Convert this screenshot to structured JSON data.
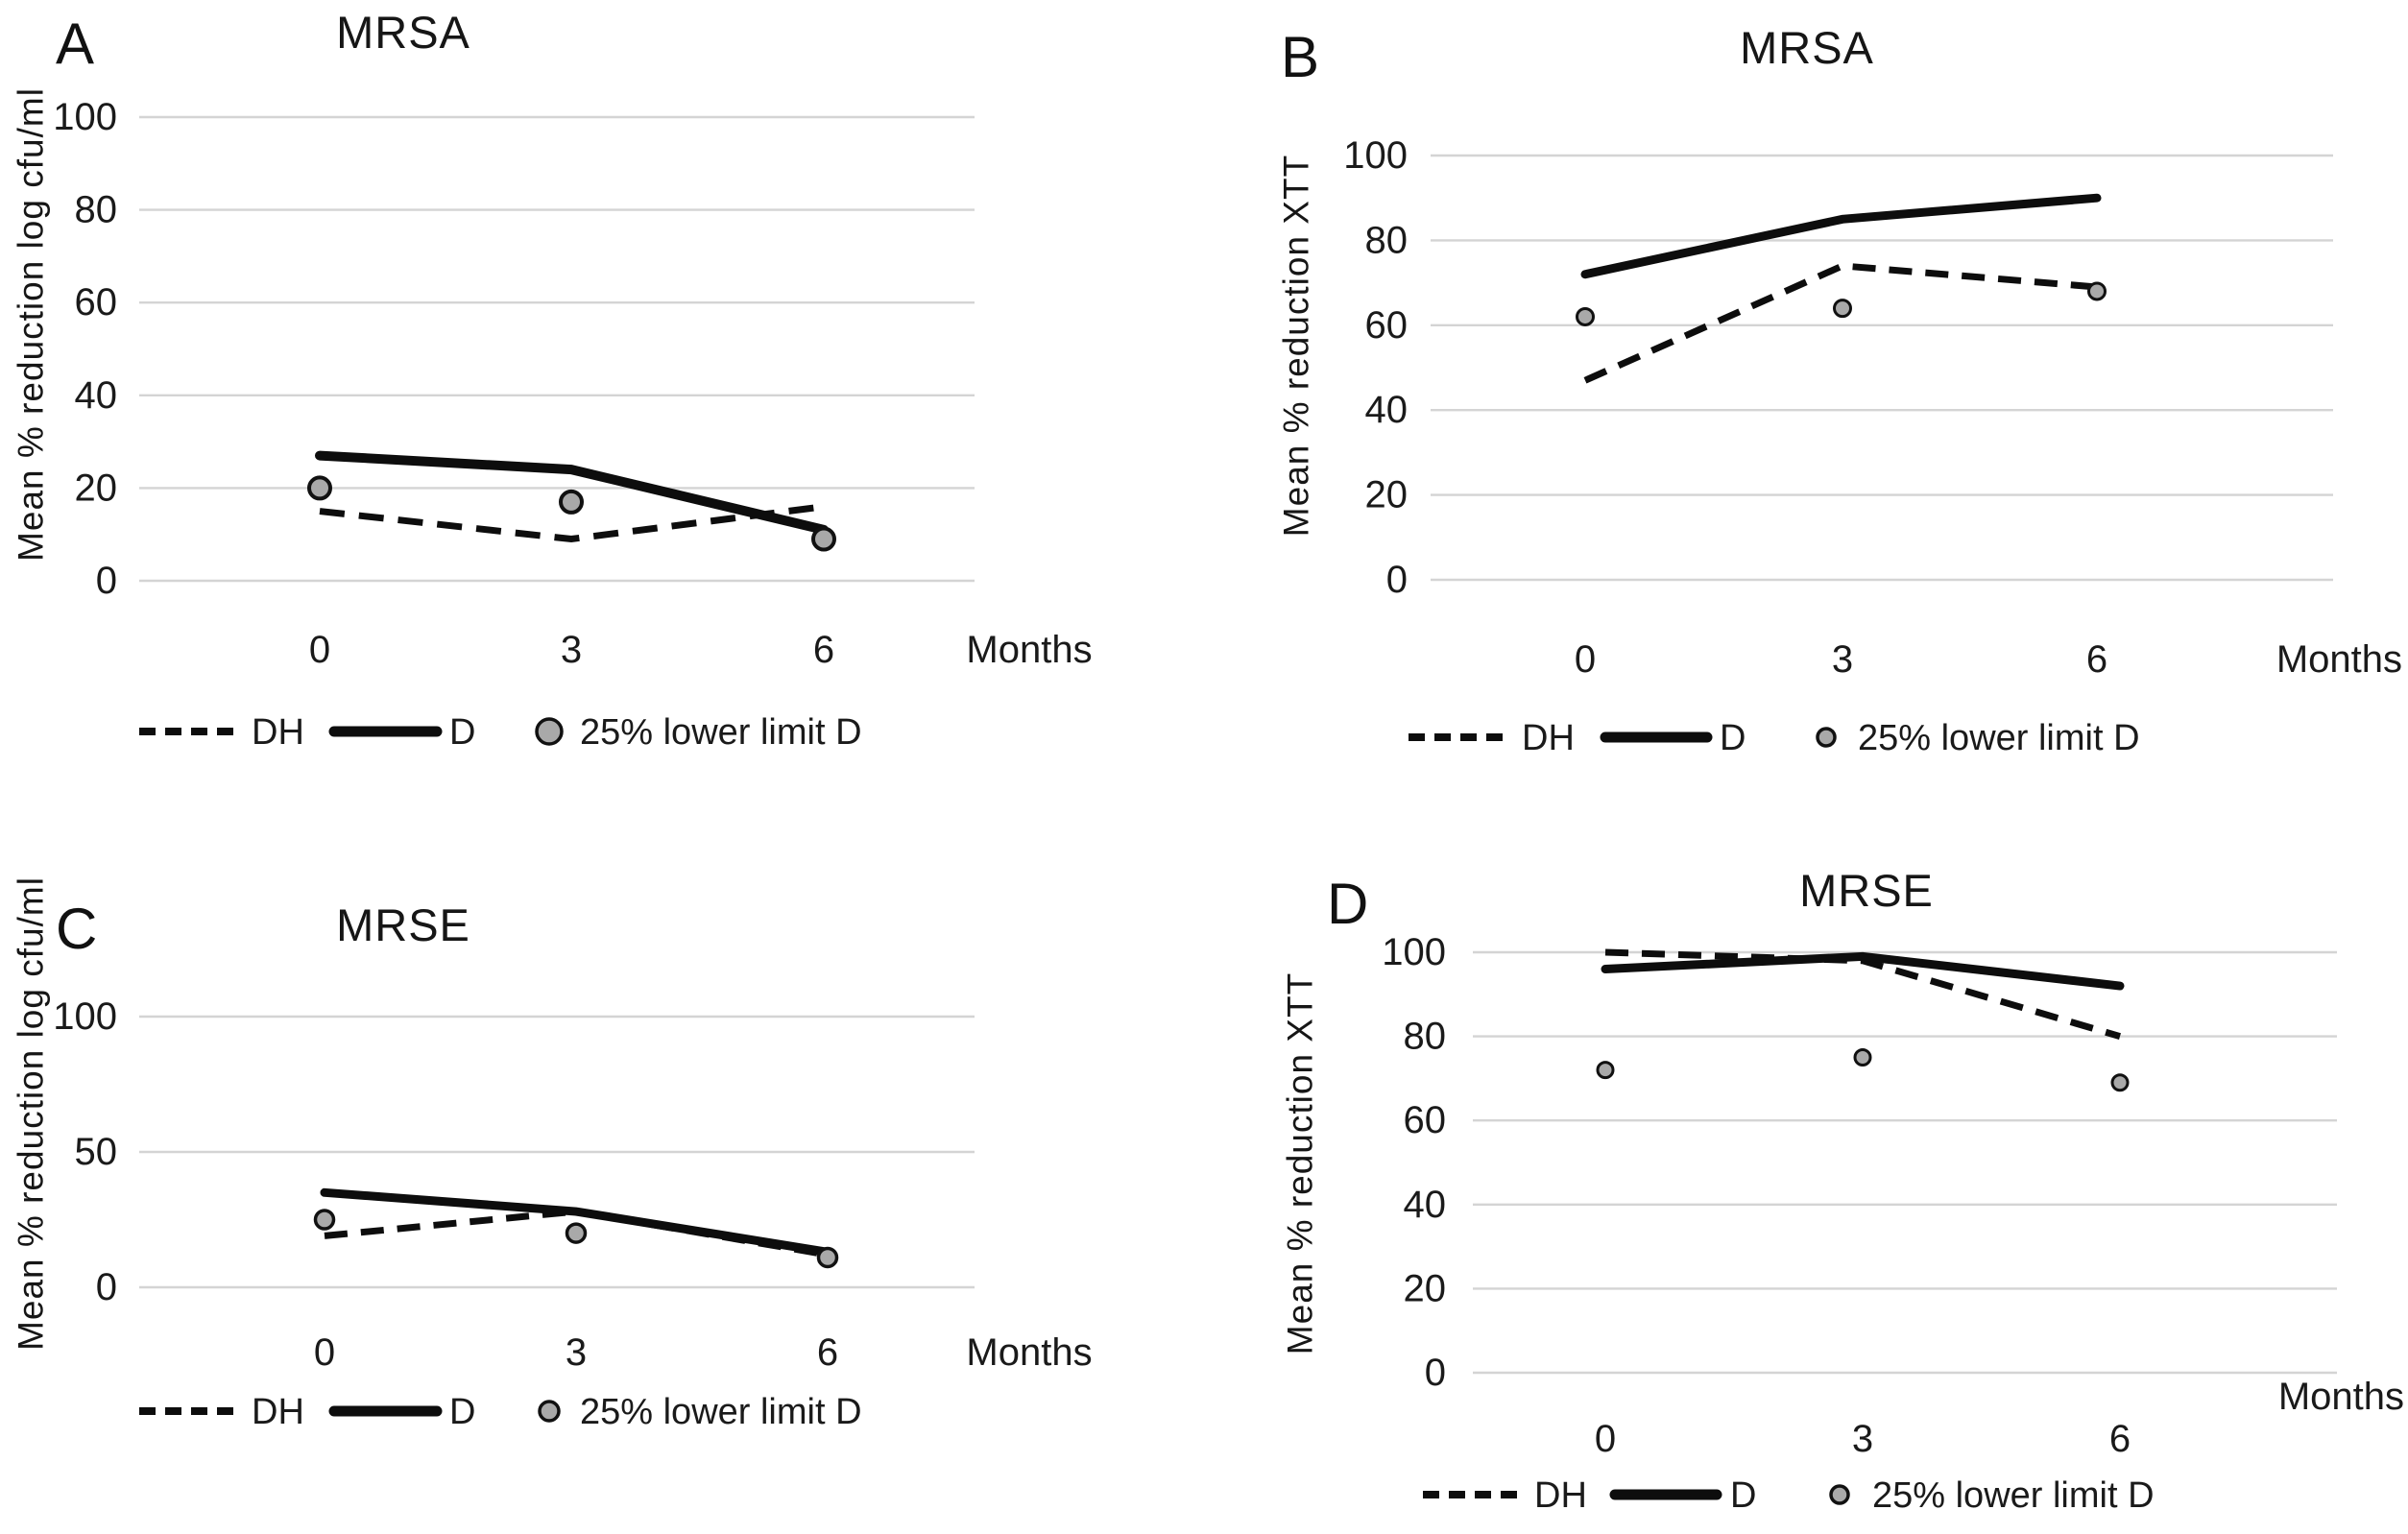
{
  "figure": {
    "background": "#ffffff",
    "text_color": "#1a1a1a",
    "gridline_color": "#d4d4d4",
    "line_color": "#0d0d0d",
    "marker_fill": "#a9a9a9",
    "marker_stroke": "#111111"
  },
  "chart_data": [
    {
      "panel_letter": "A",
      "type": "line",
      "title": "MRSA",
      "ylabel": "Mean % reduction log cfu/ml",
      "xlabel": "Months",
      "x": [
        0,
        3,
        6
      ],
      "x_tick_labels": [
        "0",
        "3",
        "6"
      ],
      "y_ticks": [
        0,
        20,
        40,
        60,
        80,
        100
      ],
      "ylim": [
        0,
        100
      ],
      "grid": true,
      "legend_position": "bottom",
      "series": [
        {
          "name": "DH",
          "style": "dashed",
          "values": [
            15,
            9,
            16
          ]
        },
        {
          "name": "D",
          "style": "solid",
          "values": [
            27,
            24,
            11
          ]
        },
        {
          "name": "25% lower limit D",
          "style": "marker",
          "values": [
            20,
            17,
            9
          ]
        }
      ]
    },
    {
      "panel_letter": "B",
      "type": "line",
      "title": "MRSA",
      "ylabel": "Mean % reduction XTT",
      "xlabel": "Months",
      "x": [
        0,
        3,
        6
      ],
      "x_tick_labels": [
        "0",
        "3",
        "6"
      ],
      "y_ticks": [
        0,
        20,
        40,
        60,
        80,
        100
      ],
      "ylim": [
        0,
        100
      ],
      "grid": true,
      "legend_position": "bottom",
      "series": [
        {
          "name": "DH",
          "style": "dashed",
          "values": [
            47,
            74,
            69
          ]
        },
        {
          "name": "D",
          "style": "solid",
          "values": [
            72,
            85,
            90
          ]
        },
        {
          "name": "25% lower limit D",
          "style": "marker",
          "values": [
            62,
            64,
            68
          ]
        }
      ]
    },
    {
      "panel_letter": "C",
      "type": "line",
      "title": "MRSE",
      "ylabel": "Mean % reduction log cfu/ml",
      "xlabel": "Months",
      "x": [
        0,
        3,
        6
      ],
      "x_tick_labels": [
        "0",
        "3",
        "6"
      ],
      "y_ticks": [
        0,
        50,
        100
      ],
      "ylim": [
        0,
        100
      ],
      "grid": true,
      "legend_position": "bottom",
      "series": [
        {
          "name": "DH",
          "style": "dashed",
          "values": [
            19,
            28,
            12
          ]
        },
        {
          "name": "D",
          "style": "solid",
          "values": [
            35,
            28,
            13
          ]
        },
        {
          "name": "25% lower limit D",
          "style": "marker",
          "values": [
            25,
            20,
            11
          ]
        }
      ]
    },
    {
      "panel_letter": "D",
      "type": "line",
      "title": "MRSE",
      "ylabel": "Mean % reduction XTT",
      "xlabel": "Months",
      "x": [
        0,
        3,
        6
      ],
      "x_tick_labels": [
        "0",
        "3",
        "6"
      ],
      "y_ticks": [
        0,
        20,
        40,
        60,
        80,
        100
      ],
      "ylim": [
        0,
        100
      ],
      "grid": true,
      "legend_position": "bottom",
      "series": [
        {
          "name": "DH",
          "style": "dashed",
          "values": [
            100,
            98,
            80
          ]
        },
        {
          "name": "D",
          "style": "solid",
          "values": [
            96,
            99,
            92
          ]
        },
        {
          "name": "25% lower limit D",
          "style": "marker",
          "values": [
            72,
            75,
            69
          ]
        }
      ]
    }
  ]
}
